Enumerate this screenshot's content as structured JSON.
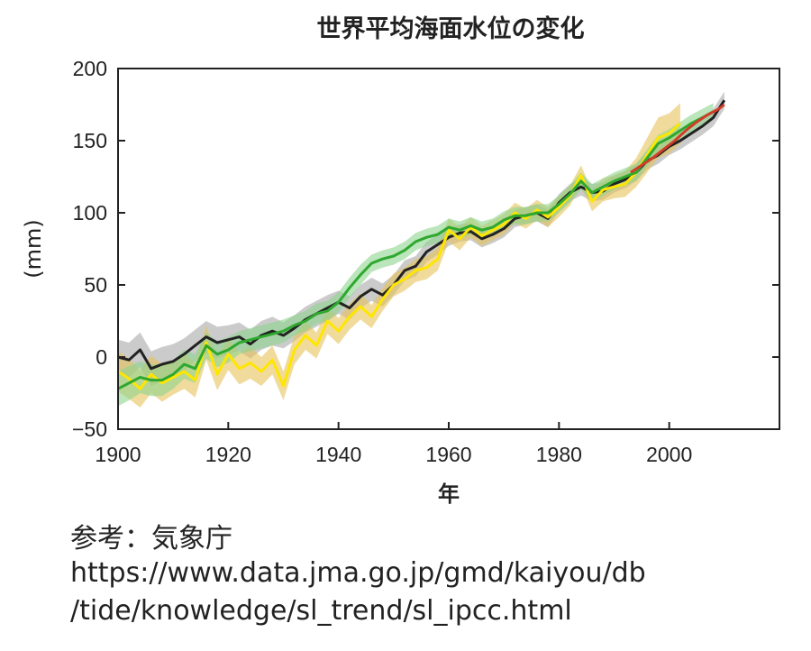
{
  "chart_data": {
    "type": "line",
    "title": "世界平均海面水位の変化",
    "xlabel": "年",
    "ylabel": "(mm)",
    "xlim": [
      1900,
      2020
    ],
    "ylim": [
      -50,
      200
    ],
    "xticks": [
      1900,
      1920,
      1940,
      1960,
      1980,
      2000
    ],
    "yticks": [
      -50,
      0,
      50,
      100,
      150,
      200
    ],
    "grid": false,
    "series": [
      {
        "color": "#222222",
        "band_color": "#a8a8a8",
        "x": [
          1900,
          1902,
          1904,
          1906,
          1908,
          1910,
          1912,
          1914,
          1916,
          1918,
          1920,
          1922,
          1924,
          1926,
          1928,
          1930,
          1932,
          1934,
          1936,
          1938,
          1940,
          1942,
          1944,
          1946,
          1948,
          1950,
          1952,
          1954,
          1956,
          1958,
          1960,
          1962,
          1964,
          1966,
          1968,
          1970,
          1972,
          1974,
          1976,
          1978,
          1980,
          1982,
          1984,
          1986,
          1988,
          1990,
          1992,
          1994,
          1996,
          1998,
          2000,
          2002,
          2004,
          2006,
          2008,
          2010
        ],
        "values": [
          0,
          -2,
          5,
          -8,
          -5,
          -3,
          2,
          8,
          14,
          10,
          12,
          14,
          9,
          15,
          18,
          15,
          20,
          26,
          30,
          34,
          38,
          34,
          42,
          47,
          43,
          50,
          60,
          63,
          73,
          78,
          83,
          86,
          87,
          82,
          85,
          89,
          96,
          98,
          100,
          96,
          107,
          114,
          118,
          114,
          115,
          120,
          123,
          128,
          136,
          140,
          146,
          150,
          155,
          160,
          166,
          178
        ],
        "band": [
          12,
          12,
          12,
          12,
          12,
          12,
          11,
          11,
          11,
          11,
          10,
          10,
          10,
          10,
          10,
          9,
          9,
          9,
          9,
          9,
          8,
          8,
          8,
          8,
          8,
          7,
          7,
          7,
          7,
          7,
          6,
          6,
          6,
          6,
          6,
          6,
          6,
          6,
          6,
          6,
          6,
          6,
          6,
          6,
          6,
          6,
          6,
          6,
          6,
          6,
          6,
          6,
          6,
          6,
          6,
          6
        ]
      },
      {
        "color": "#ffe600",
        "band_color": "#e6c35a",
        "x": [
          1900,
          1902,
          1904,
          1906,
          1908,
          1910,
          1912,
          1914,
          1916,
          1918,
          1920,
          1922,
          1924,
          1926,
          1928,
          1930,
          1932,
          1934,
          1936,
          1938,
          1940,
          1942,
          1944,
          1946,
          1948,
          1950,
          1952,
          1954,
          1956,
          1958,
          1960,
          1962,
          1964,
          1966,
          1968,
          1970,
          1972,
          1974,
          1976,
          1978,
          1980,
          1982,
          1984,
          1986,
          1988,
          1990,
          1992,
          1994,
          1996,
          1998,
          2000,
          2002
        ],
        "values": [
          -10,
          -15,
          -22,
          -12,
          -18,
          -14,
          -10,
          -16,
          10,
          -12,
          2,
          -8,
          -4,
          -10,
          -2,
          -20,
          5,
          15,
          8,
          25,
          18,
          28,
          35,
          28,
          40,
          50,
          54,
          60,
          62,
          68,
          88,
          82,
          90,
          84,
          88,
          92,
          100,
          96,
          102,
          97,
          104,
          112,
          126,
          108,
          116,
          118,
          120,
          128,
          140,
          152,
          155,
          162
        ],
        "band": [
          14,
          14,
          13,
          13,
          13,
          12,
          12,
          12,
          12,
          11,
          11,
          11,
          11,
          10,
          10,
          10,
          10,
          10,
          9,
          9,
          9,
          9,
          9,
          8,
          8,
          8,
          8,
          8,
          8,
          8,
          8,
          8,
          7,
          7,
          7,
          7,
          7,
          7,
          7,
          7,
          7,
          7,
          7,
          7,
          8,
          8,
          9,
          10,
          12,
          14,
          14,
          14
        ]
      },
      {
        "color": "#2ea82e",
        "band_color": "#8ed48e",
        "x": [
          1900,
          1902,
          1904,
          1906,
          1908,
          1910,
          1912,
          1914,
          1916,
          1918,
          1920,
          1922,
          1924,
          1926,
          1928,
          1930,
          1932,
          1934,
          1936,
          1938,
          1940,
          1942,
          1944,
          1946,
          1948,
          1950,
          1952,
          1954,
          1956,
          1958,
          1960,
          1962,
          1964,
          1966,
          1968,
          1970,
          1972,
          1974,
          1976,
          1978,
          1980,
          1982,
          1984,
          1986,
          1988,
          1990,
          1992,
          1994,
          1996,
          1998,
          2000,
          2002,
          2004,
          2006,
          2008
        ],
        "values": [
          -22,
          -18,
          -14,
          -16,
          -16,
          -12,
          -5,
          -8,
          8,
          2,
          5,
          10,
          12,
          14,
          16,
          18,
          22,
          25,
          30,
          32,
          38,
          48,
          57,
          65,
          68,
          70,
          74,
          80,
          83,
          85,
          90,
          88,
          91,
          88,
          90,
          95,
          98,
          98,
          100,
          100,
          106,
          113,
          122,
          114,
          118,
          122,
          125,
          128,
          138,
          148,
          152,
          157,
          162,
          166,
          170
        ],
        "band": [
          12,
          12,
          11,
          11,
          11,
          10,
          10,
          10,
          9,
          9,
          9,
          8,
          8,
          8,
          8,
          8,
          7,
          7,
          7,
          7,
          7,
          7,
          7,
          6,
          6,
          6,
          6,
          6,
          6,
          6,
          6,
          6,
          6,
          6,
          6,
          6,
          6,
          6,
          6,
          6,
          6,
          6,
          6,
          6,
          6,
          6,
          6,
          6,
          6,
          6,
          6,
          6,
          6,
          6,
          6
        ]
      },
      {
        "color": "#d23c28",
        "x": [
          1993,
          1995,
          1997,
          1999,
          2001,
          2003,
          2005,
          2007,
          2009,
          2010
        ],
        "values": [
          128,
          133,
          138,
          144,
          150,
          157,
          163,
          168,
          172,
          175
        ]
      }
    ]
  },
  "source": {
    "label": "参考：気象庁",
    "url_line1": "https://www.data.jma.go.jp/gmd/kaiyou/db",
    "url_line2": "/tide/knowledge/sl_trend/sl_ipcc.html"
  }
}
